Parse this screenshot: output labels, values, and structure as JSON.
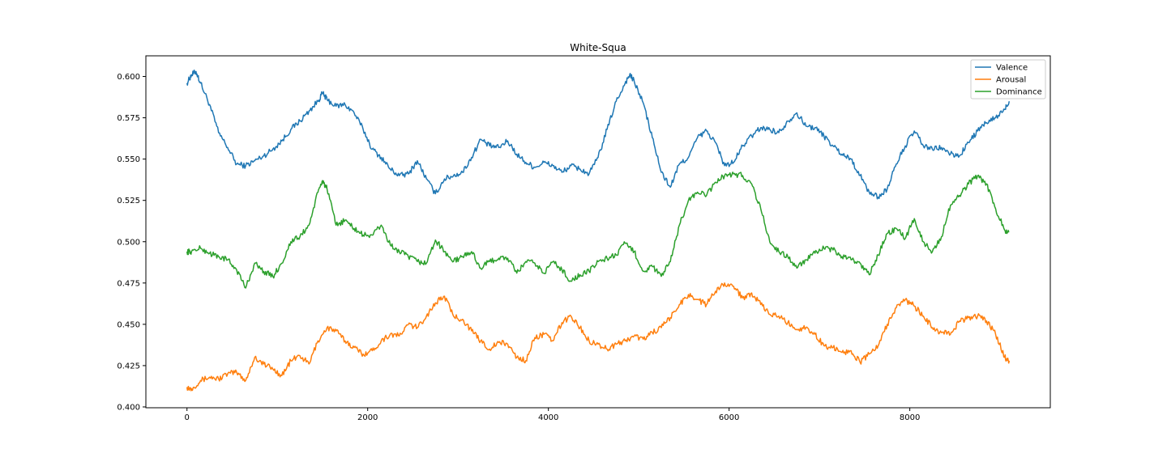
{
  "chart_data": {
    "type": "line",
    "title": "White-Squa",
    "xlabel": "",
    "ylabel": "",
    "xlim": [
      -455,
      9555
    ],
    "ylim": [
      0.3995,
      0.6125
    ],
    "xticks": [
      0,
      2000,
      4000,
      6000,
      8000
    ],
    "xtick_labels": [
      "0",
      "2000",
      "4000",
      "6000",
      "8000"
    ],
    "yticks": [
      0.4,
      0.425,
      0.45,
      0.475,
      0.5,
      0.525,
      0.55,
      0.575,
      0.6
    ],
    "ytick_labels": [
      "0.400",
      "0.425",
      "0.450",
      "0.475",
      "0.500",
      "0.525",
      "0.550",
      "0.575",
      "0.600"
    ],
    "grid": false,
    "legend": {
      "position": "top-right"
    },
    "series": [
      {
        "name": "Valence",
        "color": "#1f77b4",
        "x": [
          0,
          50,
          100,
          150,
          250,
          350,
          450,
          550,
          650,
          750,
          850,
          950,
          1050,
          1150,
          1250,
          1350,
          1450,
          1500,
          1550,
          1650,
          1750,
          1850,
          1950,
          2050,
          2150,
          2250,
          2350,
          2450,
          2550,
          2650,
          2750,
          2850,
          2950,
          3050,
          3150,
          3250,
          3350,
          3450,
          3550,
          3650,
          3750,
          3850,
          3950,
          4050,
          4150,
          4250,
          4350,
          4450,
          4550,
          4650,
          4750,
          4850,
          4900,
          4950,
          5050,
          5150,
          5250,
          5350,
          5450,
          5550,
          5650,
          5750,
          5850,
          5950,
          6050,
          6150,
          6250,
          6350,
          6450,
          6550,
          6650,
          6750,
          6850,
          6950,
          7050,
          7150,
          7250,
          7350,
          7450,
          7550,
          7650,
          7750,
          7850,
          7950,
          8050,
          8150,
          8250,
          8350,
          8450,
          8550,
          8650,
          8750,
          8850,
          8950,
          9050,
          9100
        ],
        "y": [
          0.596,
          0.601,
          0.603,
          0.596,
          0.583,
          0.566,
          0.557,
          0.547,
          0.546,
          0.549,
          0.552,
          0.556,
          0.561,
          0.568,
          0.573,
          0.579,
          0.585,
          0.59,
          0.586,
          0.582,
          0.583,
          0.578,
          0.568,
          0.556,
          0.551,
          0.544,
          0.54,
          0.541,
          0.549,
          0.538,
          0.529,
          0.538,
          0.54,
          0.542,
          0.551,
          0.562,
          0.558,
          0.557,
          0.561,
          0.553,
          0.548,
          0.545,
          0.548,
          0.546,
          0.542,
          0.546,
          0.544,
          0.541,
          0.551,
          0.568,
          0.585,
          0.596,
          0.601,
          0.597,
          0.584,
          0.563,
          0.542,
          0.533,
          0.547,
          0.551,
          0.563,
          0.567,
          0.56,
          0.546,
          0.548,
          0.558,
          0.564,
          0.569,
          0.568,
          0.566,
          0.573,
          0.578,
          0.57,
          0.569,
          0.564,
          0.558,
          0.553,
          0.55,
          0.54,
          0.53,
          0.527,
          0.532,
          0.547,
          0.558,
          0.567,
          0.558,
          0.556,
          0.557,
          0.553,
          0.552,
          0.56,
          0.567,
          0.572,
          0.575,
          0.58,
          0.585
        ]
      },
      {
        "name": "Arousal",
        "color": "#ff7f0e",
        "x": [
          0,
          50,
          150,
          250,
          350,
          450,
          550,
          650,
          750,
          850,
          950,
          1050,
          1150,
          1250,
          1350,
          1450,
          1550,
          1650,
          1750,
          1850,
          1950,
          2050,
          2150,
          2250,
          2350,
          2450,
          2550,
          2650,
          2750,
          2850,
          2950,
          3050,
          3150,
          3250,
          3350,
          3450,
          3550,
          3650,
          3750,
          3850,
          3950,
          4050,
          4150,
          4250,
          4350,
          4450,
          4550,
          4650,
          4750,
          4850,
          4950,
          5050,
          5150,
          5250,
          5350,
          5450,
          5550,
          5650,
          5750,
          5850,
          5950,
          6050,
          6150,
          6250,
          6350,
          6450,
          6550,
          6650,
          6750,
          6850,
          6950,
          7050,
          7150,
          7250,
          7350,
          7450,
          7550,
          7650,
          7750,
          7850,
          7950,
          8050,
          8150,
          8250,
          8350,
          8450,
          8550,
          8650,
          8750,
          8850,
          8950,
          9050,
          9100
        ],
        "y": [
          0.412,
          0.411,
          0.416,
          0.418,
          0.417,
          0.42,
          0.421,
          0.416,
          0.43,
          0.426,
          0.423,
          0.419,
          0.428,
          0.431,
          0.426,
          0.44,
          0.448,
          0.446,
          0.44,
          0.436,
          0.432,
          0.434,
          0.44,
          0.444,
          0.443,
          0.45,
          0.448,
          0.455,
          0.463,
          0.467,
          0.455,
          0.453,
          0.446,
          0.44,
          0.435,
          0.439,
          0.438,
          0.43,
          0.428,
          0.442,
          0.444,
          0.44,
          0.451,
          0.455,
          0.448,
          0.44,
          0.438,
          0.435,
          0.438,
          0.44,
          0.443,
          0.441,
          0.445,
          0.448,
          0.454,
          0.462,
          0.468,
          0.465,
          0.462,
          0.47,
          0.475,
          0.473,
          0.466,
          0.469,
          0.462,
          0.456,
          0.455,
          0.451,
          0.447,
          0.448,
          0.444,
          0.437,
          0.436,
          0.433,
          0.434,
          0.427,
          0.432,
          0.437,
          0.45,
          0.46,
          0.465,
          0.461,
          0.455,
          0.448,
          0.445,
          0.444,
          0.452,
          0.454,
          0.455,
          0.452,
          0.444,
          0.43,
          0.428
        ]
      },
      {
        "name": "Dominance",
        "color": "#2ca02c",
        "x": [
          0,
          50,
          150,
          250,
          350,
          450,
          550,
          650,
          750,
          850,
          950,
          1050,
          1150,
          1250,
          1350,
          1450,
          1500,
          1550,
          1650,
          1750,
          1850,
          1950,
          2050,
          2150,
          2250,
          2350,
          2450,
          2550,
          2650,
          2750,
          2850,
          2950,
          3050,
          3150,
          3250,
          3350,
          3450,
          3550,
          3650,
          3750,
          3850,
          3950,
          4050,
          4150,
          4250,
          4350,
          4450,
          4550,
          4650,
          4750,
          4850,
          4950,
          5050,
          5150,
          5250,
          5350,
          5450,
          5550,
          5650,
          5750,
          5850,
          5950,
          6050,
          6150,
          6250,
          6350,
          6450,
          6550,
          6650,
          6750,
          6850,
          6950,
          7050,
          7150,
          7250,
          7350,
          7450,
          7550,
          7650,
          7750,
          7850,
          7950,
          8050,
          8150,
          8250,
          8350,
          8450,
          8550,
          8650,
          8750,
          8850,
          8950,
          9050,
          9100
        ],
        "y": [
          0.494,
          0.494,
          0.496,
          0.493,
          0.491,
          0.489,
          0.483,
          0.472,
          0.487,
          0.482,
          0.479,
          0.487,
          0.5,
          0.503,
          0.51,
          0.53,
          0.537,
          0.532,
          0.51,
          0.513,
          0.508,
          0.504,
          0.504,
          0.51,
          0.498,
          0.494,
          0.491,
          0.488,
          0.487,
          0.501,
          0.494,
          0.488,
          0.491,
          0.494,
          0.484,
          0.488,
          0.49,
          0.49,
          0.481,
          0.488,
          0.487,
          0.481,
          0.488,
          0.483,
          0.476,
          0.48,
          0.482,
          0.488,
          0.49,
          0.492,
          0.499,
          0.494,
          0.482,
          0.485,
          0.479,
          0.488,
          0.51,
          0.525,
          0.53,
          0.528,
          0.536,
          0.54,
          0.541,
          0.54,
          0.535,
          0.52,
          0.5,
          0.494,
          0.491,
          0.484,
          0.489,
          0.493,
          0.496,
          0.495,
          0.491,
          0.489,
          0.487,
          0.48,
          0.492,
          0.505,
          0.508,
          0.502,
          0.514,
          0.5,
          0.494,
          0.503,
          0.522,
          0.528,
          0.535,
          0.54,
          0.535,
          0.52,
          0.507,
          0.506
        ]
      }
    ]
  }
}
